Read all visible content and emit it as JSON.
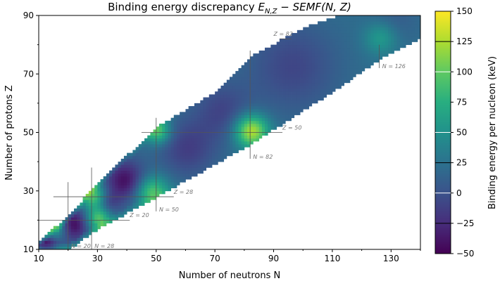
{
  "chart_data": {
    "type": "heatmap",
    "title": "Binding energy discrepancy E_{N,Z} − SEMF(N, Z)",
    "title_plain": "Binding energy discrepancy ",
    "title_math": "E",
    "title_sub": "N,Z",
    "title_rest": " − SEMF(N, Z)",
    "xlabel": "Number of neutrons N",
    "ylabel": "Number of protons Z",
    "xlim": [
      10,
      140
    ],
    "ylim": [
      10,
      90
    ],
    "xticks": [
      "10",
      "30",
      "50",
      "70",
      "90",
      "110",
      "130"
    ],
    "yticks": [
      "10",
      "30",
      "50",
      "70",
      "90"
    ],
    "colorbar": {
      "label": "Binding energy per nucleon (keV)",
      "range": [
        -50,
        150
      ],
      "ticks": [
        "-50",
        "-25",
        "0",
        "25",
        "50",
        "75",
        "100",
        "125",
        "150"
      ],
      "colormap": [
        "#440154",
        "#472d7b",
        "#3b528b",
        "#2c728e",
        "#21918c",
        "#28ae80",
        "#5ec962",
        "#addc30",
        "#fde725"
      ]
    },
    "stability_band": {
      "z_low": [
        [
          10,
          10
        ],
        [
          20,
          10
        ],
        [
          30,
          17
        ],
        [
          50,
          28
        ],
        [
          82,
          46
        ],
        [
          110,
          64
        ],
        [
          126,
          75
        ],
        [
          140,
          82
        ]
      ],
      "z_high": [
        [
          10,
          13
        ],
        [
          20,
          22
        ],
        [
          30,
          33
        ],
        [
          50,
          52
        ],
        [
          70,
          64
        ],
        [
          82,
          76
        ],
        [
          100,
          86
        ],
        [
          115,
          91
        ],
        [
          140,
          91
        ]
      ]
    },
    "base_value": 22,
    "features": [
      {
        "n": 21,
        "z": 18,
        "value": -70,
        "r": 4
      },
      {
        "n": 12,
        "z": 11,
        "value": -70,
        "r": 3
      },
      {
        "n": 39,
        "z": 33,
        "value": -65,
        "r": 5
      },
      {
        "n": 33,
        "z": 25,
        "value": -30,
        "r": 3
      },
      {
        "n": 60,
        "z": 44,
        "value": -35,
        "r": 7
      },
      {
        "n": 72,
        "z": 57,
        "value": -30,
        "r": 7
      },
      {
        "n": 96,
        "z": 72,
        "value": -30,
        "r": 11
      },
      {
        "n": 130,
        "z": 88,
        "value": -15,
        "r": 6
      },
      {
        "n": 82,
        "z": 50,
        "value": 110,
        "r": 4
      },
      {
        "n": 28,
        "z": 28,
        "value": 80,
        "r": 3
      },
      {
        "n": 50,
        "z": 50,
        "value": 80,
        "r": 3
      },
      {
        "n": 126,
        "z": 82,
        "value": 40,
        "r": 4
      },
      {
        "n": 48,
        "z": 29,
        "value": 80,
        "r": 4
      },
      {
        "n": 30,
        "z": 20,
        "value": 80,
        "r": 3
      },
      {
        "n": 15,
        "z": 17,
        "value": 70,
        "r": 3
      }
    ],
    "magic_annotations": [
      {
        "label": "N = 20",
        "line": [
          [
            20,
            10
          ],
          [
            20,
            33
          ]
        ],
        "text_at": [
          21,
          10.5
        ]
      },
      {
        "label": "N = 28",
        "line": [
          [
            28,
            10
          ],
          [
            28,
            38
          ]
        ],
        "text_at": [
          29,
          10.5
        ]
      },
      {
        "label": "Z = 20",
        "line": [
          [
            10,
            20
          ],
          [
            41,
            20
          ]
        ],
        "text_at": [
          41,
          21
        ]
      },
      {
        "label": "Z = 28",
        "line": [
          [
            15,
            28
          ],
          [
            56,
            28
          ]
        ],
        "text_at": [
          56,
          29
        ]
      },
      {
        "label": "N = 50",
        "line": [
          [
            50,
            23
          ],
          [
            50,
            55
          ]
        ],
        "text_at": [
          51,
          23
        ]
      },
      {
        "label": "Z = 50",
        "line": [
          [
            45,
            50
          ],
          [
            93,
            50
          ]
        ],
        "text_at": [
          93,
          51
        ]
      },
      {
        "label": "N = 82",
        "line": [
          [
            82,
            41
          ],
          [
            82,
            78
          ]
        ],
        "text_at": [
          83,
          41
        ]
      },
      {
        "label": "Z = 82",
        "line": [
          [
            92,
            82
          ],
          [
            96,
            82
          ]
        ],
        "text_at": [
          90,
          83
        ]
      },
      {
        "label": "N = 126",
        "line": [
          [
            126,
            72
          ],
          [
            126,
            80
          ]
        ],
        "text_at": [
          127,
          72
        ]
      }
    ]
  }
}
